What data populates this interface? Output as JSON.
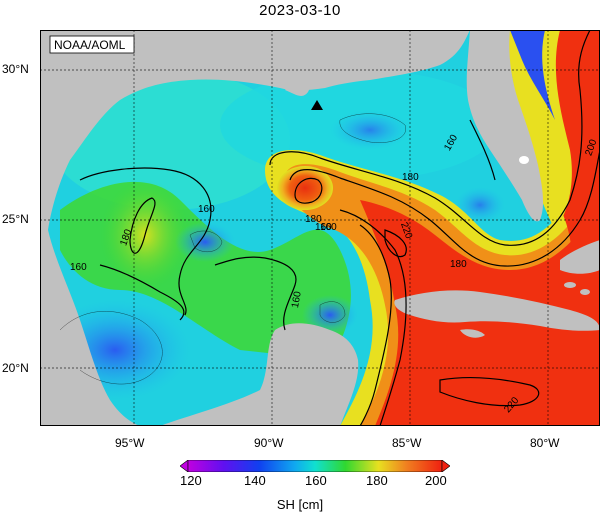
{
  "title": "2023-03-10",
  "credit": "NOAA/AOML",
  "colors": {
    "land": "#c0c0c0",
    "ocean_low": "#2a3cf0",
    "ocean_mid": "#00e0e0",
    "green": "#30d030",
    "yellow": "#e8e020",
    "red": "#f03010"
  },
  "axes": {
    "x_ticks": [
      "95°W",
      "90°W",
      "85°W",
      "80°W"
    ],
    "y_ticks": [
      "30°N",
      "25°N",
      "20°N"
    ]
  },
  "contour_labels": [
    "160",
    "160",
    "180",
    "160",
    "160",
    "180",
    "160",
    "180",
    "180",
    "220",
    "160",
    "220",
    "200"
  ],
  "marker": {
    "icon": "triangle-marker-icon"
  },
  "colorbar": {
    "ticks": [
      "120",
      "140",
      "160",
      "180",
      "200"
    ],
    "label": "SH [cm]",
    "range": [
      120,
      200
    ]
  }
}
